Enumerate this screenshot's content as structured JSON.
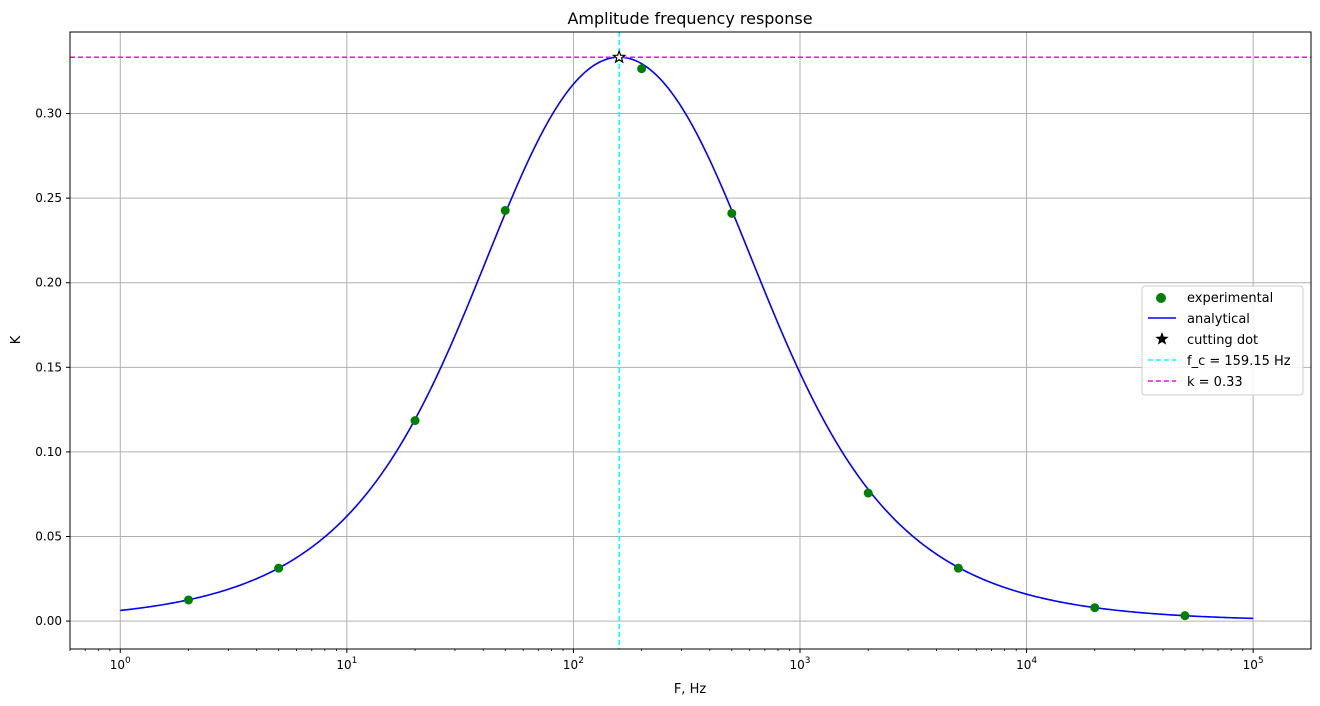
{
  "chart_data": {
    "type": "line",
    "title": "Amplitude frequency response",
    "xlabel": "F, Hz",
    "ylabel": "K",
    "xscale": "log",
    "xlim": [
      0.6,
      180000
    ],
    "ylim": [
      -0.0165,
      0.3482
    ],
    "grid": true,
    "legend_position": "center-right",
    "x_tick_values": [
      1,
      10,
      100,
      1000,
      10000,
      100000
    ],
    "x_tick_labels": [
      {
        "base": "10",
        "exp": "0"
      },
      {
        "base": "10",
        "exp": "1"
      },
      {
        "base": "10",
        "exp": "2"
      },
      {
        "base": "10",
        "exp": "3"
      },
      {
        "base": "10",
        "exp": "4"
      },
      {
        "base": "10",
        "exp": "5"
      }
    ],
    "y_ticks": [
      0.0,
      0.05,
      0.1,
      0.15,
      0.2,
      0.25,
      0.3
    ],
    "y_tick_labels": [
      "0.00",
      "0.05",
      "0.10",
      "0.15",
      "0.20",
      "0.25",
      "0.30"
    ],
    "series": [
      {
        "name": "experimental",
        "kind": "scatter",
        "color": "#008000",
        "x": [
          2,
          5,
          20,
          50,
          200,
          500,
          2000,
          5000,
          20000,
          50000
        ],
        "y": [
          0.0125,
          0.0313,
          0.1185,
          0.2427,
          0.3265,
          0.241,
          0.0757,
          0.0313,
          0.0079,
          0.0032
        ]
      },
      {
        "name": "analytical",
        "kind": "line",
        "color": "#0000ff",
        "model": "band-pass K = 1/sqrt(9 + (F/f_c - f_c/F)^2)",
        "f_c": 159.15,
        "x_range": [
          1,
          100000
        ]
      },
      {
        "name": "cutting dot",
        "kind": "star",
        "color": "#000000",
        "x": [
          159.15
        ],
        "y": [
          0.3333
        ]
      },
      {
        "name": "f_c = 159.15 Hz",
        "kind": "vline",
        "color": "#00ffff",
        "x": 159.15
      },
      {
        "name": "k = 0.33",
        "kind": "hline",
        "color": "#ff00ff",
        "y": 0.3333
      }
    ]
  }
}
